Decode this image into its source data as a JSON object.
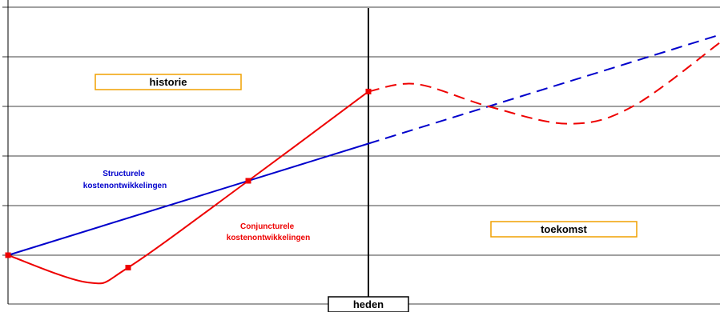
{
  "chart_data": {
    "type": "line",
    "title": "",
    "xlabel": "",
    "ylabel": "",
    "grid": true,
    "annotations": {
      "history": "historie",
      "future": "toekomst",
      "present": "heden",
      "structural": [
        "Structurele",
        "kostenontwikkelingen"
      ],
      "cyclical": [
        "Conjuncturele",
        "kostenontwikkelingen"
      ]
    },
    "series": [
      {
        "id": "structural",
        "color": "#0000cc",
        "history": [
          [
            0,
            0.0
          ],
          [
            4.5,
            2.25
          ]
        ],
        "forecast": [
          [
            4.5,
            2.25
          ],
          [
            8.9,
            4.45
          ]
        ]
      },
      {
        "id": "cyclical",
        "color": "#ee0000",
        "history": [
          [
            0,
            0.0
          ],
          [
            1.0,
            -0.55
          ],
          [
            1.5,
            -0.25
          ],
          [
            3.0,
            1.5
          ],
          [
            4.5,
            3.3
          ]
        ],
        "forecast": [
          [
            4.5,
            3.3
          ],
          [
            5.1,
            3.45
          ],
          [
            6.0,
            3.0
          ],
          [
            7.0,
            2.65
          ],
          [
            7.8,
            3.0
          ],
          [
            8.9,
            4.3
          ]
        ],
        "markers": [
          [
            0,
            0.0
          ],
          [
            1.5,
            -0.25
          ],
          [
            3.0,
            1.5
          ],
          [
            4.5,
            3.3
          ]
        ]
      }
    ],
    "present_x": 4.5
  },
  "colors": {
    "axis": "#000000",
    "grid": "#000000",
    "box_border": "#f0a000"
  }
}
